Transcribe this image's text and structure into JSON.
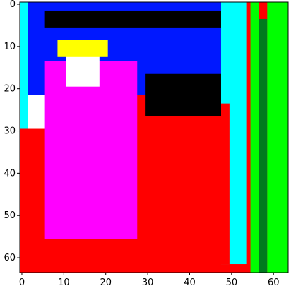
{
  "image": {
    "description_source": "pixelated false-color segmentation image",
    "grid_size": [
      64,
      64
    ],
    "x_ticks": [
      "0",
      "10",
      "20",
      "30",
      "40",
      "50",
      "60"
    ],
    "y_ticks": [
      "0",
      "10",
      "20",
      "30",
      "40",
      "50",
      "60"
    ],
    "palette": {
      "blue": "#0018ff",
      "black": "#000000",
      "cyan": "#00ffff",
      "green": "#00ff00",
      "darkgreen": "#007a1e",
      "red": "#ff0000",
      "magenta": "#ff00ff",
      "yellow": "#ffff00",
      "white": "#ffffff"
    },
    "regions": [
      {
        "name": "left-cyan-strip",
        "color": "cyan",
        "x": [
          0,
          3
        ],
        "y": [
          0,
          30
        ]
      },
      {
        "name": "top-blue-field",
        "color": "blue",
        "x": [
          2,
          53
        ],
        "y": [
          0,
          22
        ]
      },
      {
        "name": "top-black-band",
        "color": "black",
        "x": [
          6,
          50
        ],
        "y": [
          2,
          6
        ]
      },
      {
        "name": "right-cyan-band",
        "color": "cyan",
        "x": [
          48,
          54
        ],
        "y": [
          0,
          62
        ]
      },
      {
        "name": "right-green-band",
        "color": "green",
        "x": [
          55,
          57
        ],
        "y": [
          0,
          64
        ]
      },
      {
        "name": "dark-green-strip",
        "color": "darkgreen",
        "x": [
          57,
          59
        ],
        "y": [
          4,
          64
        ]
      },
      {
        "name": "far-right-green",
        "color": "green",
        "x": [
          59,
          64
        ],
        "y": [
          0,
          64
        ]
      },
      {
        "name": "left-white-band",
        "color": "white",
        "x": [
          2,
          7
        ],
        "y": [
          22,
          48
        ]
      },
      {
        "name": "left-red-lower",
        "color": "red",
        "x": [
          0,
          8
        ],
        "y": [
          30,
          64
        ]
      },
      {
        "name": "right-red-body",
        "color": "red",
        "x": [
          27,
          50
        ],
        "y": [
          24,
          62
        ]
      },
      {
        "name": "mid-black-blob",
        "color": "black",
        "x": [
          30,
          48
        ],
        "y": [
          17,
          27
        ]
      },
      {
        "name": "magenta-figure",
        "color": "magenta",
        "x": [
          6,
          28
        ],
        "y": [
          14,
          56
        ]
      },
      {
        "name": "white-head",
        "color": "white",
        "x": [
          11,
          19
        ],
        "y": [
          11,
          20
        ]
      },
      {
        "name": "yellow-outline",
        "color": "yellow",
        "x": [
          9,
          21
        ],
        "y": [
          9,
          13
        ]
      }
    ]
  }
}
